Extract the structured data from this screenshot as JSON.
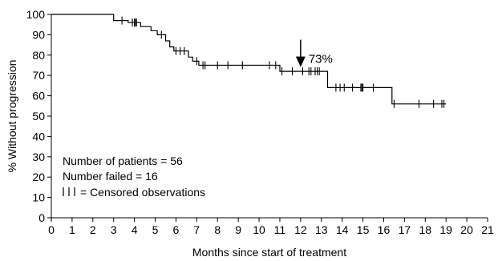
{
  "chart_data": {
    "type": "line",
    "title": "",
    "xlabel": "Months since start of treatment",
    "ylabel": "% Without progression",
    "xlim": [
      0,
      21
    ],
    "ylim": [
      0,
      100
    ],
    "x_ticks": [
      0,
      1,
      2,
      3,
      4,
      5,
      6,
      7,
      8,
      9,
      10,
      11,
      12,
      13,
      14,
      15,
      16,
      17,
      18,
      19,
      20,
      21
    ],
    "y_ticks": [
      0,
      10,
      20,
      30,
      40,
      50,
      60,
      70,
      80,
      90,
      100
    ],
    "grid": false,
    "series": [
      {
        "step_points": [
          [
            0,
            100
          ],
          [
            3.0,
            100
          ],
          [
            3.0,
            97
          ],
          [
            3.7,
            97
          ],
          [
            3.7,
            96
          ],
          [
            4.3,
            96
          ],
          [
            4.3,
            94
          ],
          [
            4.8,
            94
          ],
          [
            4.8,
            92
          ],
          [
            5.1,
            92
          ],
          [
            5.1,
            90
          ],
          [
            5.5,
            90
          ],
          [
            5.5,
            87
          ],
          [
            5.7,
            87
          ],
          [
            5.7,
            84
          ],
          [
            5.9,
            84
          ],
          [
            5.9,
            82
          ],
          [
            6.6,
            82
          ],
          [
            6.6,
            79
          ],
          [
            6.8,
            79
          ],
          [
            6.8,
            77
          ],
          [
            7.1,
            77
          ],
          [
            7.1,
            75
          ],
          [
            11.0,
            75
          ],
          [
            11.0,
            72
          ],
          [
            13.3,
            72
          ],
          [
            13.3,
            64
          ],
          [
            16.4,
            64
          ],
          [
            16.4,
            56
          ],
          [
            19.0,
            56
          ]
        ],
        "censored": [
          [
            3.4,
            97
          ],
          [
            3.9,
            96
          ],
          [
            4.0,
            96
          ],
          [
            4.05,
            96
          ],
          [
            4.1,
            96
          ],
          [
            5.3,
            90
          ],
          [
            6.0,
            82
          ],
          [
            6.2,
            82
          ],
          [
            6.4,
            82
          ],
          [
            7.0,
            77
          ],
          [
            7.3,
            75
          ],
          [
            7.4,
            75
          ],
          [
            8.0,
            75
          ],
          [
            8.5,
            75
          ],
          [
            9.2,
            75
          ],
          [
            10.5,
            75
          ],
          [
            10.8,
            75
          ],
          [
            11.1,
            72
          ],
          [
            11.6,
            72
          ],
          [
            12.1,
            72
          ],
          [
            12.4,
            72
          ],
          [
            12.5,
            72
          ],
          [
            12.7,
            72
          ],
          [
            12.8,
            72
          ],
          [
            12.9,
            72
          ],
          [
            13.7,
            64
          ],
          [
            13.9,
            64
          ],
          [
            14.1,
            64
          ],
          [
            14.5,
            64
          ],
          [
            14.9,
            64
          ],
          [
            14.95,
            64
          ],
          [
            15.0,
            64
          ],
          [
            15.5,
            64
          ],
          [
            16.5,
            56
          ],
          [
            17.7,
            56
          ],
          [
            18.4,
            56
          ],
          [
            18.8,
            56
          ],
          [
            18.9,
            56
          ]
        ]
      }
    ],
    "annotation": {
      "text": "73%",
      "x": 12.0,
      "y": 73
    },
    "notes": [
      "Number of patients = 56",
      "Number failed = 16",
      "= Censored observations"
    ]
  }
}
